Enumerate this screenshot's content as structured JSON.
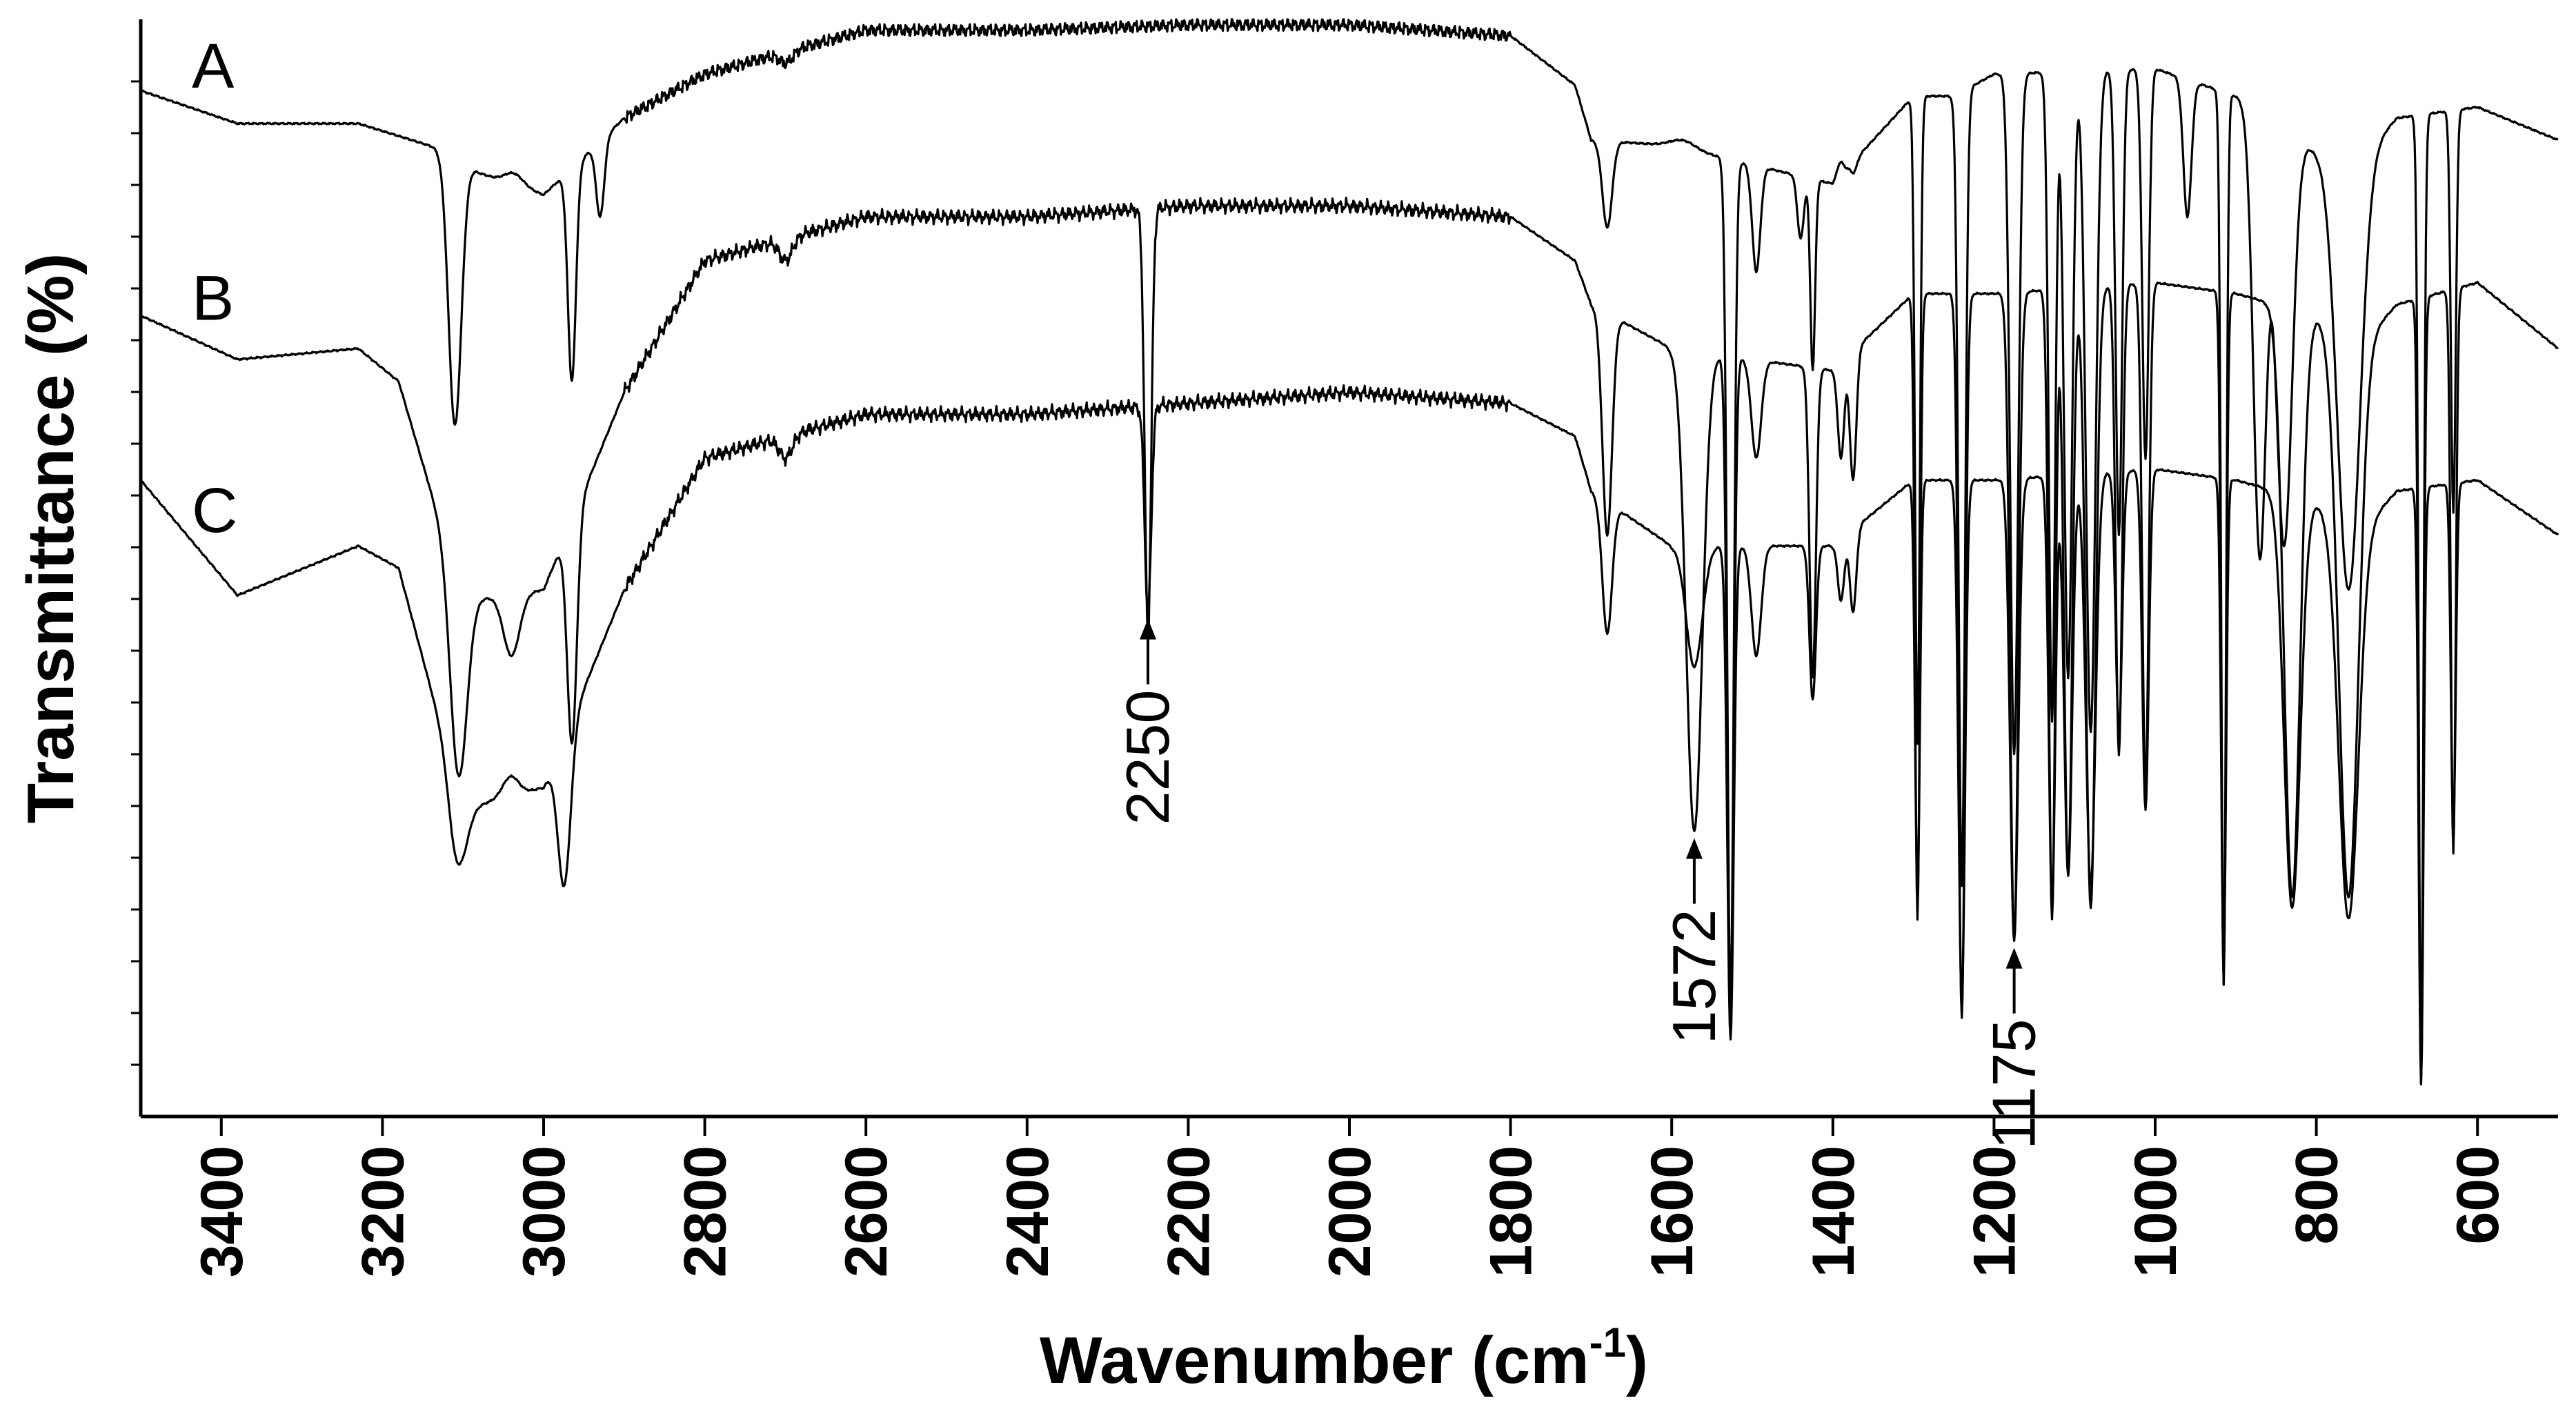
{
  "chart_data": {
    "type": "line",
    "title": "",
    "xlabel": "Wavenumber (cm",
    "xlabel_sup": "-1",
    "xlabel_close": ")",
    "ylabel": "Transmittance (%)",
    "xlim": [
      3500,
      500
    ],
    "x_reversed": true,
    "ylim": [
      0,
      100
    ],
    "y_tick_labels": false,
    "x_ticks": [
      "3400",
      "3200",
      "3000",
      "2800",
      "2600",
      "2400",
      "2200",
      "2000",
      "1800",
      "1600",
      "1400",
      "1200",
      "1000",
      "800",
      "600"
    ],
    "x_tick_values": [
      3400,
      3200,
      3000,
      2800,
      2600,
      2400,
      2200,
      2000,
      1800,
      1600,
      1400,
      1200,
      1000,
      800,
      600
    ],
    "grid": false,
    "legend": "inline labels at left",
    "series": [
      {
        "name": "A",
        "baseline": [
          [
            3500,
            93.5
          ],
          [
            3380,
            90.5
          ],
          [
            3230,
            90.5
          ],
          [
            3120,
            88
          ],
          [
            3080,
            86
          ],
          [
            3000,
            84
          ],
          [
            2900,
            91
          ],
          [
            2800,
            95
          ],
          [
            2600,
            99
          ],
          [
            2400,
            99
          ],
          [
            2200,
            99.5
          ],
          [
            2000,
            99.5
          ],
          [
            1800,
            98.5
          ],
          [
            1720,
            94
          ],
          [
            1700,
            89
          ],
          [
            1600,
            88.5
          ],
          [
            1400,
            85
          ],
          [
            1300,
            93
          ],
          [
            1250,
            93
          ],
          [
            1200,
            95
          ],
          [
            1000,
            95.5
          ],
          [
            900,
            93
          ],
          [
            800,
            88
          ],
          [
            750,
            87
          ],
          [
            700,
            91
          ],
          [
            600,
            92
          ],
          [
            500,
            89
          ]
        ],
        "bands": [
          [
            3110,
            63,
            8
          ],
          [
            3040,
            86,
            12
          ],
          [
            2965,
            67,
            5
          ],
          [
            2930,
            82,
            5
          ],
          [
            2700,
            96,
            8
          ],
          [
            1680,
            81,
            6
          ],
          [
            1590,
            89,
            15
          ],
          [
            1527,
            10,
            4
          ],
          [
            1495,
            77,
            5
          ],
          [
            1440,
            80,
            4
          ],
          [
            1425,
            68,
            3
          ],
          [
            1390,
            87,
            4
          ],
          [
            1375,
            86,
            4
          ],
          [
            1295,
            34,
            3
          ],
          [
            1240,
            21,
            4
          ],
          [
            1175,
            33,
            5
          ],
          [
            1128,
            36,
            4
          ],
          [
            1108,
            40,
            5
          ],
          [
            1080,
            35,
            6
          ],
          [
            1045,
            53,
            4
          ],
          [
            1012,
            60,
            4
          ],
          [
            960,
            82,
            5
          ],
          [
            915,
            12,
            3
          ],
          [
            870,
            51,
            8
          ],
          [
            840,
            52,
            10
          ],
          [
            760,
            48,
            14
          ],
          [
            670,
            5,
            3
          ],
          [
            630,
            55,
            3
          ]
        ]
      },
      {
        "name": "B",
        "baseline": [
          [
            3500,
            73
          ],
          [
            3380,
            69
          ],
          [
            3230,
            70
          ],
          [
            3180,
            67
          ],
          [
            3100,
            47
          ],
          [
            3000,
            48
          ],
          [
            2900,
            66
          ],
          [
            2800,
            78
          ],
          [
            2600,
            82
          ],
          [
            2400,
            82
          ],
          [
            2200,
            83
          ],
          [
            2000,
            83
          ],
          [
            1800,
            82
          ],
          [
            1720,
            78
          ],
          [
            1700,
            74
          ],
          [
            1600,
            70
          ],
          [
            1400,
            68
          ],
          [
            1300,
            75
          ],
          [
            1250,
            75
          ],
          [
            1200,
            75
          ],
          [
            1000,
            76
          ],
          [
            900,
            75
          ],
          [
            800,
            73
          ],
          [
            750,
            70
          ],
          [
            700,
            74
          ],
          [
            600,
            76
          ],
          [
            500,
            70
          ]
        ],
        "bands": [
          [
            3105,
            31,
            10
          ],
          [
            3040,
            42,
            10
          ],
          [
            2965,
            34,
            6
          ],
          [
            2700,
            78,
            8
          ],
          [
            2250,
            44,
            4
          ],
          [
            1680,
            53,
            6
          ],
          [
            1572,
            26,
            10
          ],
          [
            1527,
            8,
            4
          ],
          [
            1495,
            60,
            6
          ],
          [
            1425,
            40,
            4
          ],
          [
            1390,
            60,
            4
          ],
          [
            1375,
            58,
            4
          ],
          [
            1295,
            18,
            3
          ],
          [
            1240,
            9,
            4
          ],
          [
            1175,
            16,
            5
          ],
          [
            1128,
            18,
            4
          ],
          [
            1108,
            22,
            5
          ],
          [
            1080,
            19,
            6
          ],
          [
            1045,
            33,
            4
          ],
          [
            1012,
            30,
            4
          ],
          [
            915,
            12,
            3
          ],
          [
            830,
            20,
            10
          ],
          [
            760,
            20,
            12
          ],
          [
            670,
            3,
            3
          ],
          [
            630,
            24,
            3
          ]
        ]
      },
      {
        "name": "C",
        "baseline": [
          [
            3500,
            58
          ],
          [
            3380,
            47.5
          ],
          [
            3230,
            52
          ],
          [
            3180,
            50
          ],
          [
            3100,
            28
          ],
          [
            3000,
            30
          ],
          [
            2900,
            48
          ],
          [
            2800,
            60
          ],
          [
            2600,
            64
          ],
          [
            2400,
            64
          ],
          [
            2200,
            65
          ],
          [
            2000,
            66
          ],
          [
            1800,
            65
          ],
          [
            1720,
            62
          ],
          [
            1700,
            57
          ],
          [
            1600,
            52
          ],
          [
            1400,
            52
          ],
          [
            1300,
            58
          ],
          [
            1250,
            58
          ],
          [
            1200,
            58
          ],
          [
            1000,
            59
          ],
          [
            900,
            58
          ],
          [
            800,
            56
          ],
          [
            750,
            53
          ],
          [
            700,
            57
          ],
          [
            600,
            58
          ],
          [
            500,
            53
          ]
        ],
        "bands": [
          [
            3105,
            23,
            10
          ],
          [
            3040,
            31,
            10
          ],
          [
            2975,
            21,
            8
          ],
          [
            2700,
            60,
            8
          ],
          [
            2250,
            46,
            4
          ],
          [
            1680,
            44,
            6
          ],
          [
            1572,
            41,
            10
          ],
          [
            1527,
            7,
            4
          ],
          [
            1495,
            42,
            6
          ],
          [
            1425,
            38,
            4
          ],
          [
            1390,
            47,
            4
          ],
          [
            1375,
            46,
            4
          ],
          [
            1295,
            20,
            3
          ],
          [
            1240,
            10,
            4
          ],
          [
            1175,
            16,
            5
          ],
          [
            1128,
            19,
            4
          ],
          [
            1108,
            22,
            5
          ],
          [
            1080,
            21,
            6
          ],
          [
            1045,
            35,
            4
          ],
          [
            1012,
            28,
            4
          ],
          [
            915,
            14,
            3
          ],
          [
            830,
            19,
            10
          ],
          [
            760,
            18,
            12
          ],
          [
            670,
            3,
            3
          ],
          [
            630,
            26,
            3
          ]
        ]
      }
    ],
    "annotations": [
      {
        "text": "2250",
        "x": 2250,
        "series": "C"
      },
      {
        "text": "1572",
        "x": 1572,
        "series": "B"
      },
      {
        "text": "1175",
        "x": 1175,
        "series": "B"
      }
    ]
  }
}
